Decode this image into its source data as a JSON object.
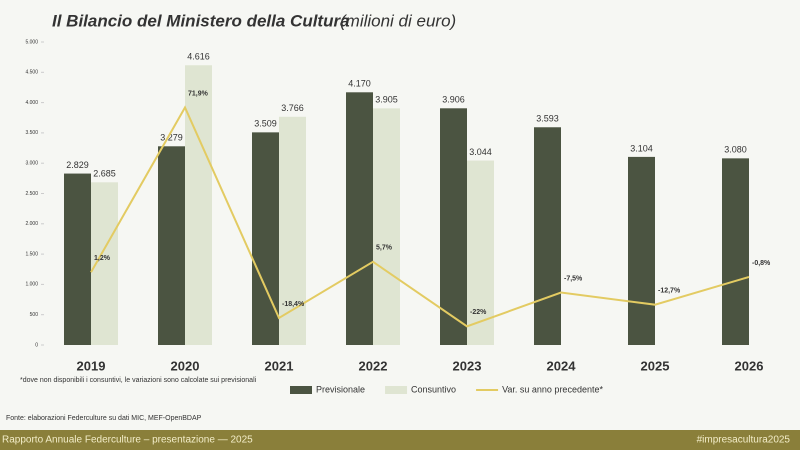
{
  "chart_data": {
    "type": "bar",
    "title": "Il Bilancio del Ministero della Cultura",
    "subtitle": "(milioni di euro)",
    "categories": [
      "2019",
      "2020",
      "2021",
      "2022",
      "2023",
      "2024",
      "2025",
      "2026"
    ],
    "series": [
      {
        "name": "Previsionale",
        "color": "#4b5441",
        "values": [
          2829,
          3279,
          3509,
          4170,
          3906,
          3593,
          3104,
          3080
        ],
        "value_labels": [
          "2.829",
          "3.279",
          "3.509",
          "4.170",
          "3.906",
          "3.593",
          "3.104",
          "3.080"
        ]
      },
      {
        "name": "Consuntivo",
        "color": "#dfe5d2",
        "values": [
          2685,
          4616,
          3766,
          3905,
          3044,
          null,
          null,
          null
        ],
        "value_labels": [
          "2.685",
          "4.616",
          "3.766",
          "3.905",
          "3.044",
          null,
          null,
          null
        ]
      },
      {
        "name": "Var. su anno precedente*",
        "type": "line",
        "axis": "y2",
        "color": "#e3cb62",
        "values": [
          1.2,
          71.9,
          -18.4,
          5.7,
          -22,
          -7.5,
          -12.7,
          -0.8
        ],
        "value_labels": [
          "1,2%",
          "71,9%",
          "-18,4%",
          "5,7%",
          "-22%",
          "-7,5%",
          "-12,7%",
          "-0,8%"
        ]
      }
    ],
    "ylim": [
      0,
      5000
    ],
    "yticks": [
      0,
      500,
      {
        "value": 1000,
        "label": "1.000"
      },
      {
        "value": 1500,
        "label": "1.500"
      },
      {
        "value": 2000,
        "label": "2.000"
      },
      {
        "value": 2500,
        "label": "2.500"
      },
      {
        "value": 3000,
        "label": "3.000"
      },
      {
        "value": 3500,
        "label": "3.500"
      },
      {
        "value": 4000,
        "label": "4.000"
      },
      {
        "value": 4500,
        "label": "4.500"
      },
      {
        "value": 5000,
        "label": "5.000"
      }
    ],
    "y2lim": [
      -30,
      100
    ],
    "note": "*dove non disponibili i consuntivi, le variazioni sono calcolate sui previsionali",
    "source": "Fonte: elaborazioni Federculture su dati MIC, MEF-OpenBDAP"
  },
  "footer": {
    "left": "Rapporto Annuale Federculture – presentazione — 2025",
    "right": "#impresacultura2025"
  }
}
